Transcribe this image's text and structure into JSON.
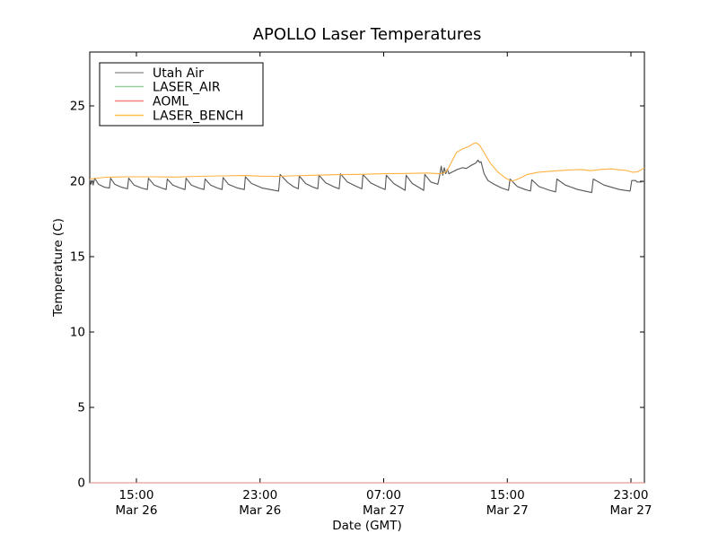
{
  "chart_data": {
    "type": "line",
    "title": "APOLLO Laser Temperatures",
    "xlabel": "Date (GMT)",
    "ylabel": "Temperature (C)",
    "x_unit": "hours since Mar 26 00:00 GMT",
    "xlim": [
      11.98,
      47.87
    ],
    "ylim": [
      0,
      28.6
    ],
    "grid": false,
    "legend_position": "upper left",
    "frame_color": "#000000",
    "background_color": "#ffffff",
    "xticks": [
      {
        "t": 15,
        "time": "15:00",
        "date": "Mar 26"
      },
      {
        "t": 23,
        "time": "23:00",
        "date": "Mar 26"
      },
      {
        "t": 31,
        "time": "07:00",
        "date": "Mar 27"
      },
      {
        "t": 39,
        "time": "15:00",
        "date": "Mar 27"
      },
      {
        "t": 47,
        "time": "23:00",
        "date": "Mar 27"
      }
    ],
    "yticks": [
      0,
      5,
      10,
      15,
      20,
      25
    ],
    "series": [
      {
        "name": "Utah Air",
        "color": "#555555",
        "opacity": 1,
        "points": [
          [
            11.98,
            20.1
          ],
          [
            12.05,
            19.8
          ],
          [
            12.12,
            20.05
          ],
          [
            12.2,
            19.75
          ],
          [
            12.3,
            20.2
          ],
          [
            12.55,
            19.8
          ],
          [
            12.95,
            19.6
          ],
          [
            13.25,
            19.55
          ],
          [
            13.33,
            20.2
          ],
          [
            13.6,
            19.8
          ],
          [
            14.05,
            19.6
          ],
          [
            14.42,
            19.5
          ],
          [
            14.5,
            20.2
          ],
          [
            14.85,
            19.75
          ],
          [
            15.35,
            19.55
          ],
          [
            15.7,
            19.45
          ],
          [
            15.78,
            20.2
          ],
          [
            16.15,
            19.75
          ],
          [
            16.65,
            19.55
          ],
          [
            16.92,
            19.45
          ],
          [
            17.0,
            20.15
          ],
          [
            17.35,
            19.75
          ],
          [
            17.85,
            19.55
          ],
          [
            18.14,
            19.45
          ],
          [
            18.21,
            20.2
          ],
          [
            18.55,
            19.75
          ],
          [
            19.05,
            19.55
          ],
          [
            19.37,
            19.45
          ],
          [
            19.44,
            20.15
          ],
          [
            19.8,
            19.75
          ],
          [
            20.25,
            19.55
          ],
          [
            20.54,
            19.45
          ],
          [
            20.61,
            20.25
          ],
          [
            20.95,
            19.8
          ],
          [
            21.55,
            19.55
          ],
          [
            21.98,
            19.45
          ],
          [
            22.05,
            20.3
          ],
          [
            22.45,
            19.85
          ],
          [
            23.15,
            19.55
          ],
          [
            24.2,
            19.35
          ],
          [
            24.3,
            20.45
          ],
          [
            24.75,
            19.95
          ],
          [
            25.15,
            19.65
          ],
          [
            25.47,
            19.5
          ],
          [
            25.54,
            20.35
          ],
          [
            25.95,
            19.85
          ],
          [
            26.45,
            19.6
          ],
          [
            26.74,
            19.5
          ],
          [
            26.81,
            20.4
          ],
          [
            27.25,
            19.9
          ],
          [
            27.85,
            19.6
          ],
          [
            28.12,
            19.5
          ],
          [
            28.2,
            20.5
          ],
          [
            28.65,
            19.95
          ],
          [
            29.25,
            19.65
          ],
          [
            29.59,
            19.5
          ],
          [
            29.66,
            20.45
          ],
          [
            30.15,
            19.9
          ],
          [
            30.75,
            19.6
          ],
          [
            31.1,
            19.45
          ],
          [
            31.17,
            20.4
          ],
          [
            31.65,
            19.85
          ],
          [
            32.15,
            19.55
          ],
          [
            32.38,
            19.4
          ],
          [
            32.45,
            20.4
          ],
          [
            32.85,
            19.85
          ],
          [
            33.35,
            19.55
          ],
          [
            33.59,
            19.4
          ],
          [
            33.66,
            20.45
          ],
          [
            34.05,
            19.95
          ],
          [
            34.5,
            19.8
          ],
          [
            34.62,
            20.35
          ],
          [
            34.72,
            21.0
          ],
          [
            34.82,
            20.4
          ],
          [
            34.92,
            20.9
          ],
          [
            35.02,
            20.5
          ],
          [
            35.12,
            20.8
          ],
          [
            35.22,
            20.5
          ],
          [
            35.5,
            20.65
          ],
          [
            35.8,
            20.8
          ],
          [
            36.1,
            20.9
          ],
          [
            36.35,
            20.85
          ],
          [
            36.65,
            21.05
          ],
          [
            36.95,
            21.2
          ],
          [
            37.1,
            21.4
          ],
          [
            37.2,
            21.25
          ],
          [
            37.3,
            21.3
          ],
          [
            37.5,
            20.5
          ],
          [
            37.75,
            20.05
          ],
          [
            38.15,
            19.8
          ],
          [
            38.65,
            19.55
          ],
          [
            39.08,
            19.4
          ],
          [
            39.18,
            20.15
          ],
          [
            39.65,
            19.65
          ],
          [
            40.15,
            19.45
          ],
          [
            40.5,
            19.35
          ],
          [
            40.58,
            20.1
          ],
          [
            41.05,
            19.65
          ],
          [
            41.75,
            19.4
          ],
          [
            42.13,
            19.3
          ],
          [
            42.21,
            20.15
          ],
          [
            42.75,
            19.75
          ],
          [
            43.55,
            19.45
          ],
          [
            44.46,
            19.25
          ],
          [
            44.56,
            20.15
          ],
          [
            45.25,
            19.75
          ],
          [
            46.25,
            19.45
          ],
          [
            46.95,
            19.35
          ],
          [
            47.05,
            20.05
          ],
          [
            47.3,
            20.05
          ],
          [
            47.4,
            19.95
          ],
          [
            47.65,
            19.95
          ],
          [
            47.87,
            20.0
          ]
        ]
      },
      {
        "name": "LASER_AIR",
        "color": "#99cc99",
        "opacity": 0.8,
        "points": [
          [
            11.98,
            0
          ],
          [
            47.87,
            0
          ]
        ]
      },
      {
        "name": "AOML",
        "color": "#f58080",
        "opacity": 0.8,
        "points": [
          [
            11.98,
            0
          ],
          [
            47.87,
            0
          ]
        ]
      },
      {
        "name": "LASER_BENCH",
        "color": "#ffb142",
        "opacity": 1,
        "points": [
          [
            11.98,
            20.15
          ],
          [
            13.0,
            20.27
          ],
          [
            14.5,
            20.3
          ],
          [
            16.0,
            20.3
          ],
          [
            17.5,
            20.28
          ],
          [
            19.0,
            20.33
          ],
          [
            20.5,
            20.36
          ],
          [
            22.0,
            20.38
          ],
          [
            23.0,
            20.34
          ],
          [
            24.0,
            20.32
          ],
          [
            25.0,
            20.36
          ],
          [
            26.5,
            20.4
          ],
          [
            28.0,
            20.44
          ],
          [
            29.5,
            20.46
          ],
          [
            31.0,
            20.5
          ],
          [
            32.5,
            20.52
          ],
          [
            33.8,
            20.55
          ],
          [
            34.6,
            20.5
          ],
          [
            34.9,
            20.55
          ],
          [
            35.1,
            20.7
          ],
          [
            35.4,
            21.3
          ],
          [
            35.7,
            21.9
          ],
          [
            36.1,
            22.15
          ],
          [
            36.5,
            22.3
          ],
          [
            36.8,
            22.5
          ],
          [
            37.0,
            22.55
          ],
          [
            37.2,
            22.4
          ],
          [
            37.5,
            21.9
          ],
          [
            37.9,
            21.2
          ],
          [
            38.4,
            20.6
          ],
          [
            38.9,
            20.2
          ],
          [
            39.3,
            20.0
          ],
          [
            39.7,
            20.15
          ],
          [
            40.3,
            20.45
          ],
          [
            41.0,
            20.6
          ],
          [
            42.0,
            20.68
          ],
          [
            43.0,
            20.75
          ],
          [
            43.8,
            20.78
          ],
          [
            44.4,
            20.7
          ],
          [
            45.0,
            20.78
          ],
          [
            45.7,
            20.82
          ],
          [
            46.2,
            20.76
          ],
          [
            46.7,
            20.72
          ],
          [
            47.1,
            20.6
          ],
          [
            47.4,
            20.62
          ],
          [
            47.87,
            20.88
          ]
        ]
      }
    ]
  },
  "legend": {
    "items": [
      {
        "label": "Utah Air",
        "color": "#9c9c9c"
      },
      {
        "label": "LASER_AIR",
        "color": "#99cc99"
      },
      {
        "label": "AOML",
        "color": "#f58080"
      },
      {
        "label": "LASER_BENCH",
        "color": "#ffc24d"
      }
    ]
  }
}
